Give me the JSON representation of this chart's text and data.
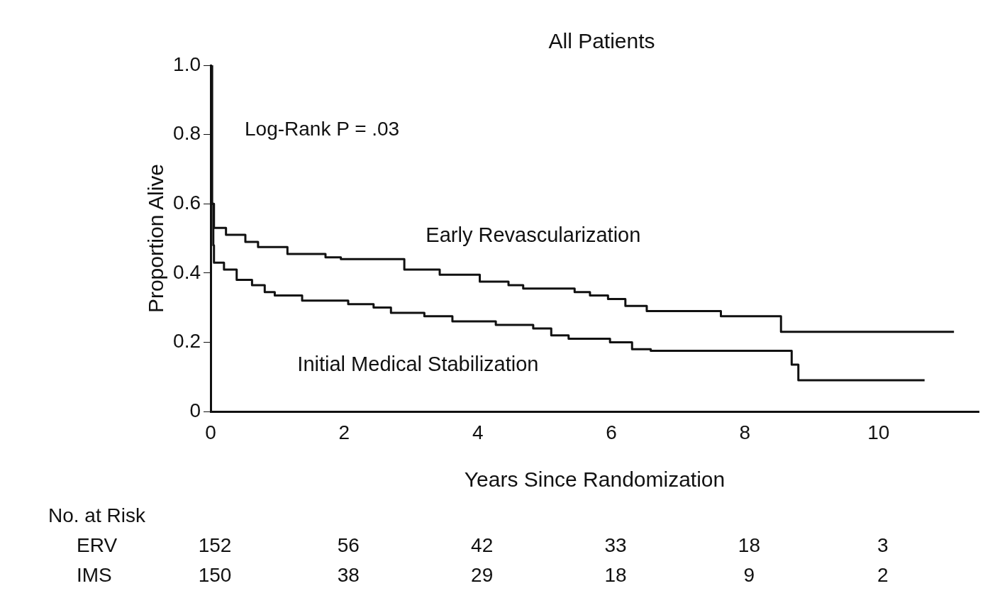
{
  "chart_data": {
    "type": "step",
    "title": "All Patients",
    "xlabel": "Years Since Randomization",
    "ylabel": "Proportion Alive",
    "xlim": [
      0,
      11.5
    ],
    "xticks": [
      0,
      2,
      4,
      6,
      8,
      10
    ],
    "ylim": [
      0,
      1
    ],
    "yticks": [
      {
        "value": 0,
        "label": "0"
      },
      {
        "value": 0.2,
        "label": "0.2"
      },
      {
        "value": 0.4,
        "label": "0.4"
      },
      {
        "value": 0.6,
        "label": "0.6"
      },
      {
        "value": 0.8,
        "label": "0.8"
      },
      {
        "value": 1,
        "label": "1.0"
      }
    ],
    "grid": false,
    "legend": false,
    "marker": "none",
    "line_style": "solid",
    "series": [
      {
        "name": "Early Revascularization",
        "color": "#111111",
        "x": [
          0,
          0.02,
          0.05,
          0.23,
          0.52,
          0.71,
          1.15,
          1.72,
          1.95,
          2.9,
          3.43,
          4.03,
          4.46,
          4.68,
          5.45,
          5.68,
          5.95,
          6.21,
          6.53,
          7.64,
          8.54,
          11.13
        ],
        "values": [
          1.0,
          0.6,
          0.53,
          0.51,
          0.49,
          0.475,
          0.455,
          0.445,
          0.44,
          0.41,
          0.395,
          0.375,
          0.365,
          0.355,
          0.345,
          0.335,
          0.325,
          0.305,
          0.29,
          0.275,
          0.23,
          0.23
        ]
      },
      {
        "name": "Initial Medical Stabilization",
        "color": "#111111",
        "x": [
          0,
          0.02,
          0.04,
          0.05,
          0.2,
          0.39,
          0.62,
          0.81,
          0.96,
          1.37,
          2.06,
          2.44,
          2.7,
          3.2,
          3.62,
          4.27,
          4.83,
          5.1,
          5.36,
          5.98,
          6.31,
          6.59,
          8.7,
          8.8,
          10.69
        ],
        "values": [
          1.0,
          0.6,
          0.48,
          0.43,
          0.41,
          0.38,
          0.365,
          0.345,
          0.335,
          0.32,
          0.31,
          0.3,
          0.285,
          0.275,
          0.26,
          0.25,
          0.24,
          0.22,
          0.21,
          0.2,
          0.18,
          0.175,
          0.135,
          0.09,
          0.09
        ]
      }
    ],
    "annotations": [
      "Log-Rank P = .03",
      "No. at Risk",
      "ERV",
      "152",
      "56",
      "42",
      "33",
      "18",
      "3",
      "IMS",
      "150",
      "38",
      "29",
      "18",
      "9",
      "2"
    ]
  }
}
